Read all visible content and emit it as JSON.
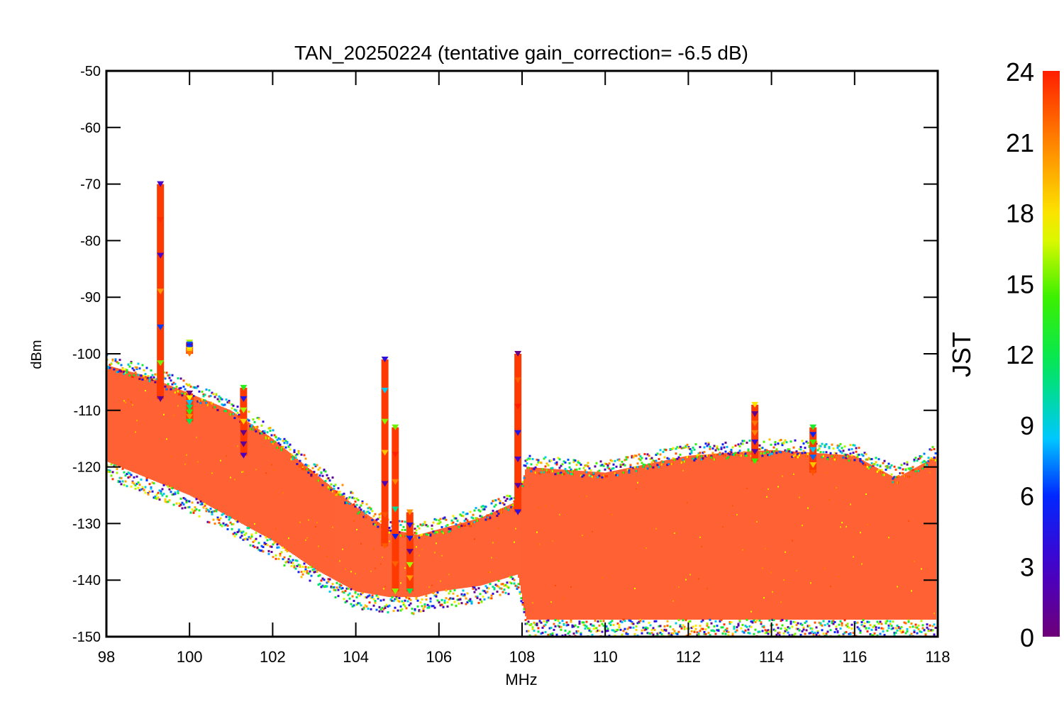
{
  "chart_data": {
    "type": "scatter",
    "title": "TAN_20250224 (tentative gain_correction= -6.5 dB)",
    "xlabel": "MHz",
    "ylabel": "dBm",
    "xlim": [
      98,
      118
    ],
    "ylim": [
      -150,
      -50
    ],
    "xticks": [
      98,
      100,
      102,
      104,
      106,
      108,
      110,
      112,
      114,
      116,
      118
    ],
    "yticks": [
      -50,
      -60,
      -70,
      -80,
      -90,
      -100,
      -110,
      -120,
      -130,
      -140,
      -150
    ],
    "x_tick_labels": [
      "98",
      "100",
      "102",
      "104",
      "106",
      "108",
      "110",
      "112",
      "114",
      "116",
      "118"
    ],
    "y_tick_labels": [
      "-50",
      "-60",
      "-70",
      "-80",
      "-90",
      "-100",
      "-110",
      "-120",
      "-130",
      "-140",
      "-150"
    ],
    "colorbar": {
      "label": "JST",
      "range": [
        0,
        24
      ],
      "ticks": [
        0,
        3,
        6,
        9,
        12,
        15,
        18,
        21,
        24
      ],
      "tick_labels": [
        "0",
        "3",
        "6",
        "9",
        "12",
        "15",
        "18",
        "21",
        "24"
      ],
      "colormap": "rainbow (purple → blue → cyan → green → yellow → orange → red)"
    },
    "grid": false,
    "noise_floor": {
      "note_x": [
        98,
        99,
        100,
        101,
        102,
        103,
        104,
        104.8,
        105.5,
        106,
        107,
        107.9,
        108.1,
        110,
        112,
        114,
        116,
        117,
        118
      ],
      "upper": [
        -104,
        -106,
        -109,
        -112,
        -117,
        -123,
        -129,
        -133,
        -134,
        -133,
        -131,
        -128,
        -122,
        -123,
        -120,
        -119,
        -120,
        -124,
        -120
      ],
      "lower": [
        -118,
        -121,
        -124,
        -128,
        -132,
        -137,
        -141,
        -142,
        -142,
        -141,
        -140,
        -138,
        -146,
        -146,
        -146,
        -146,
        -146,
        -146,
        -146
      ],
      "center": [
        -111,
        -114,
        -117,
        -120,
        -125,
        -130,
        -135,
        -137,
        -138,
        -137,
        -135,
        -133,
        -135,
        -135,
        -134,
        -134,
        -134,
        -135,
        -134
      ]
    },
    "peaks": [
      {
        "x": 99.3,
        "y_top": -70,
        "y_bottom": -108
      },
      {
        "x": 100.0,
        "y_top": -98,
        "y_bottom": -100
      },
      {
        "x": 100.0,
        "y_top": -107,
        "y_bottom": -112
      },
      {
        "x": 101.3,
        "y_top": -106,
        "y_bottom": -118
      },
      {
        "x": 104.7,
        "y_top": -101,
        "y_bottom": -134
      },
      {
        "x": 104.95,
        "y_top": -113,
        "y_bottom": -142
      },
      {
        "x": 105.3,
        "y_top": -128,
        "y_bottom": -142
      },
      {
        "x": 107.9,
        "y_top": -100,
        "y_bottom": -128
      },
      {
        "x": 113.6,
        "y_top": -109,
        "y_bottom": -119
      },
      {
        "x": 115.0,
        "y_top": -113,
        "y_bottom": -121
      }
    ],
    "series": []
  },
  "colors": {
    "background": "#ffffff",
    "axis": "#000000",
    "dominant_marker": "#ff3a00"
  }
}
